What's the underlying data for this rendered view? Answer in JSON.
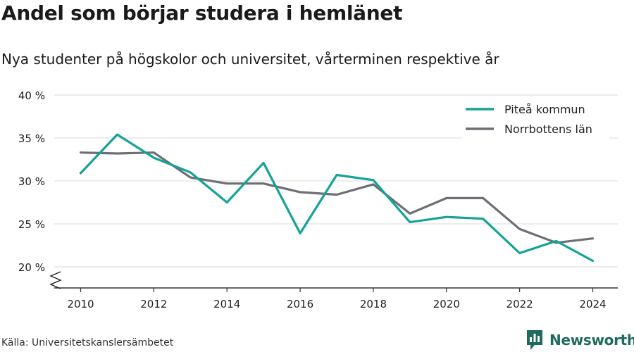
{
  "title": "Andel som börjar studera i hemlänet",
  "subtitle": "Nya studenter på högskolor och universitet, vårterminen respektive år",
  "source": "Källa: Universitetskanslersämbetet",
  "brand": "Newsworthy",
  "colors": {
    "pitea": "#14a396",
    "norrbotten": "#6e6e76",
    "grid": "#d9d9d9",
    "axis": "#333333",
    "brand": "#1e6b5d"
  },
  "chart_data": {
    "type": "line",
    "x": [
      2010,
      2011,
      2012,
      2013,
      2014,
      2015,
      2016,
      2017,
      2018,
      2019,
      2020,
      2021,
      2022,
      2023,
      2024
    ],
    "series": [
      {
        "name": "Piteå kommun",
        "color": "#14a396",
        "values": [
          30.9,
          35.4,
          32.7,
          31.0,
          27.5,
          32.1,
          23.9,
          30.7,
          30.1,
          25.2,
          25.8,
          25.6,
          21.6,
          23.0,
          20.7
        ]
      },
      {
        "name": "Norrbottens län",
        "color": "#6e6e76",
        "values": [
          33.3,
          33.2,
          33.3,
          30.4,
          29.7,
          29.7,
          28.7,
          28.4,
          29.6,
          26.2,
          28.0,
          28.0,
          24.4,
          22.8,
          23.3
        ]
      }
    ],
    "ylim": [
      20,
      40
    ],
    "yticks": [
      20,
      25,
      30,
      35,
      40
    ],
    "ytick_labels": [
      "20 %",
      "25 %",
      "30 %",
      "35 %",
      "40 %"
    ],
    "xticks": [
      2010,
      2012,
      2014,
      2016,
      2018,
      2020,
      2022,
      2024
    ],
    "xlabel": "",
    "ylabel": "",
    "grid": true,
    "y_axis_break": true,
    "legend_position": "top-right"
  }
}
